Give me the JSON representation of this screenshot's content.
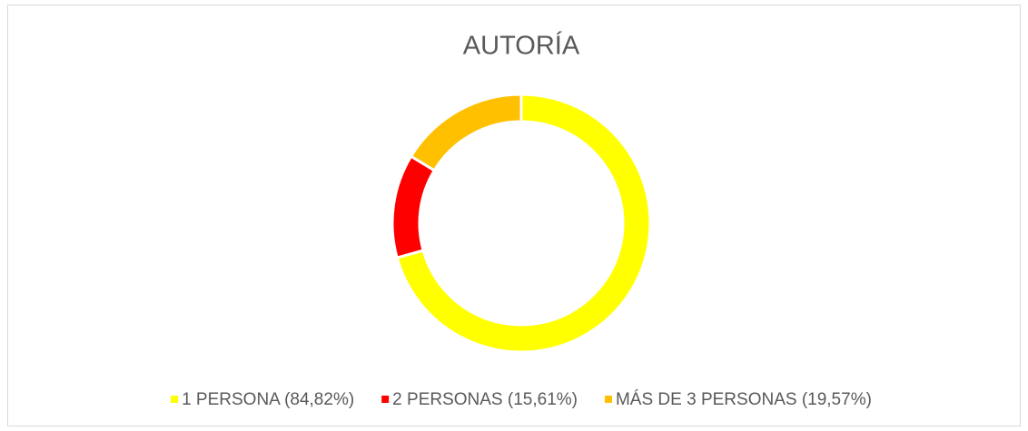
{
  "chart_data": {
    "type": "donut",
    "title": "AUTORÍA",
    "categories": [
      "1 PERSONA (84,82%)",
      "2 PERSONAS (15,61%)",
      "MÁS DE 3 PERSONAS (19,57%)"
    ],
    "values": [
      84.82,
      15.61,
      19.57
    ],
    "colors": [
      "#ffff00",
      "#ff0000",
      "#ffc000"
    ],
    "legend": "bottom"
  }
}
